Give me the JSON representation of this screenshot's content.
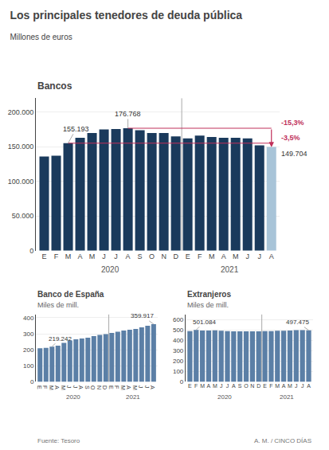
{
  "title": "Los principales tenedores de deuda pública",
  "subtitle": "Millones de euros",
  "annotations": [
    "Fuente: Tesoro",
    "A. M. / CINCO DÍAS"
  ],
  "chart_data": [
    {
      "type": "bar",
      "title": "Bancos",
      "categories": [
        "E",
        "F",
        "M",
        "A",
        "M",
        "J",
        "J",
        "A",
        "S",
        "O",
        "N",
        "D",
        "E",
        "F",
        "M",
        "A",
        "M",
        "J",
        "J",
        "A"
      ],
      "category_groups": [
        "2020",
        "2020",
        "2020",
        "2020",
        "2020",
        "2020",
        "2020",
        "2020",
        "2020",
        "2020",
        "2020",
        "2020",
        "2021",
        "2021",
        "2021",
        "2021",
        "2021",
        "2021",
        "2021",
        "2021"
      ],
      "values": [
        136000,
        137000,
        155193,
        163000,
        170000,
        175000,
        175500,
        176768,
        174000,
        170000,
        170000,
        165000,
        162000,
        166000,
        164000,
        163000,
        163000,
        162000,
        152000,
        149704
      ],
      "colors": [
        "#1a3a5c",
        "#1a3a5c",
        "#1a3a5c",
        "#1a3a5c",
        "#1a3a5c",
        "#1a3a5c",
        "#1a3a5c",
        "#1a3a5c",
        "#1a3a5c",
        "#1a3a5c",
        "#1a3a5c",
        "#1a3a5c",
        "#1a3a5c",
        "#1a3a5c",
        "#1a3a5c",
        "#1a3a5c",
        "#1a3a5c",
        "#1a3a5c",
        "#1a3a5c",
        "#a8c4d8"
      ],
      "ylim": [
        0,
        220000
      ],
      "yticks": [
        0,
        {
          "value": 50000,
          "label": "50.000"
        },
        {
          "value": 100000,
          "label": "100.000"
        },
        {
          "value": 150000,
          "label": "150.000"
        },
        {
          "value": 200000,
          "label": "200.000"
        }
      ],
      "grid": true,
      "annotations": [
        {
          "text": "155.193",
          "value": 155193
        },
        {
          "text": "176.768",
          "value": 176768
        },
        {
          "text": "149.704",
          "value": 149704
        },
        {
          "text": "-15,3%",
          "from": 176768,
          "to": 149704,
          "color": "#c0305a"
        },
        {
          "text": "-3,5%",
          "from": 155193,
          "to": 149704,
          "color": "#c0305a"
        }
      ]
    },
    {
      "type": "bar",
      "title": "Banco de España",
      "subtitle": "Miles de mill.",
      "categories": [
        "E",
        "F",
        "M",
        "A",
        "M",
        "J",
        "J",
        "A",
        "S",
        "O",
        "N",
        "D",
        "E",
        "F",
        "M",
        "A",
        "M",
        "J",
        "J",
        "A"
      ],
      "category_groups": [
        "2020",
        "2020",
        "2020",
        "2020",
        "2020",
        "2020",
        "2020",
        "2020",
        "2020",
        "2020",
        "2020",
        "2020",
        "2021",
        "2021",
        "2021",
        "2021",
        "2021",
        "2021",
        "2021",
        "2021"
      ],
      "values": [
        210000,
        212000,
        219242,
        225000,
        243000,
        258000,
        265000,
        270000,
        275000,
        285000,
        293000,
        298000,
        305000,
        312000,
        320000,
        325000,
        330000,
        340000,
        350000,
        359917
      ],
      "color": "#5b7fa6",
      "ylim": [
        0,
        420000
      ],
      "yticks": [
        0,
        {
          "value": 100000,
          "label": "100"
        },
        {
          "value": 200000,
          "label": "200"
        },
        {
          "value": 300000,
          "label": "300"
        },
        {
          "value": 400000,
          "label": "400"
        }
      ],
      "grid": true,
      "annotations": [
        {
          "text": "219.242",
          "value": 219242
        },
        {
          "text": "359.917",
          "value": 359917
        }
      ]
    },
    {
      "type": "bar",
      "title": "Extranjeros",
      "subtitle": "Miles de mill.",
      "categories": [
        "E",
        "F",
        "M",
        "A",
        "M",
        "J",
        "J",
        "A",
        "S",
        "O",
        "N",
        "D",
        "E",
        "F",
        "M",
        "A",
        "M",
        "J",
        "J",
        "A"
      ],
      "category_groups": [
        "2020",
        "2020",
        "2020",
        "2020",
        "2020",
        "2020",
        "2020",
        "2020",
        "2020",
        "2020",
        "2020",
        "2020",
        "2021",
        "2021",
        "2021",
        "2021",
        "2021",
        "2021",
        "2021",
        "2021"
      ],
      "values": [
        490000,
        501084,
        496000,
        496000,
        497000,
        494000,
        490000,
        488000,
        487000,
        488000,
        487000,
        488000,
        489000,
        490000,
        493000,
        494000,
        496000,
        498000,
        499000,
        497475
      ],
      "color": "#5b7fa6",
      "ylim": [
        0,
        650000
      ],
      "yticks": [
        0,
        {
          "value": 100000,
          "label": "100"
        },
        {
          "value": 200000,
          "label": "200"
        },
        {
          "value": 300000,
          "label": "300"
        },
        {
          "value": 400000,
          "label": "400"
        },
        {
          "value": 500000,
          "label": "500"
        },
        {
          "value": 600000,
          "label": "600"
        }
      ],
      "grid": true,
      "annotations": [
        {
          "text": "501.084",
          "value": 501084
        },
        {
          "text": "497.475",
          "value": 497475
        }
      ]
    }
  ]
}
